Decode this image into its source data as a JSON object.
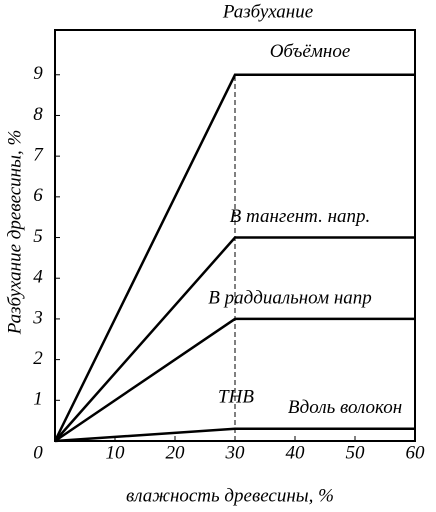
{
  "chart_data": {
    "type": "line",
    "title": "Разбухание",
    "xlabel": "влажность древесины, %",
    "ylabel": "Разбухание древесины, %",
    "xlim": [
      0,
      60
    ],
    "ylim": [
      0,
      10.1
    ],
    "xticks": [
      0,
      10,
      20,
      30,
      40,
      50,
      60
    ],
    "yticks": [
      1,
      2,
      3,
      4,
      5,
      6,
      7,
      8,
      9
    ],
    "x": [
      0,
      30,
      60
    ],
    "series": [
      {
        "name": "Объёмное",
        "color": "#000000",
        "values": [
          0,
          9,
          9
        ]
      },
      {
        "name": "В тангент. напр.",
        "color": "#000000",
        "values": [
          0,
          5,
          5
        ]
      },
      {
        "name": "В раддиальном напр",
        "color": "#000000",
        "values": [
          0,
          3,
          3
        ]
      },
      {
        "name": "Вдоль волокон",
        "color": "#000000",
        "values": [
          0,
          0.3,
          0.3
        ]
      }
    ],
    "annotations": [
      {
        "text": "ТНВ",
        "x": 30
      }
    ]
  }
}
